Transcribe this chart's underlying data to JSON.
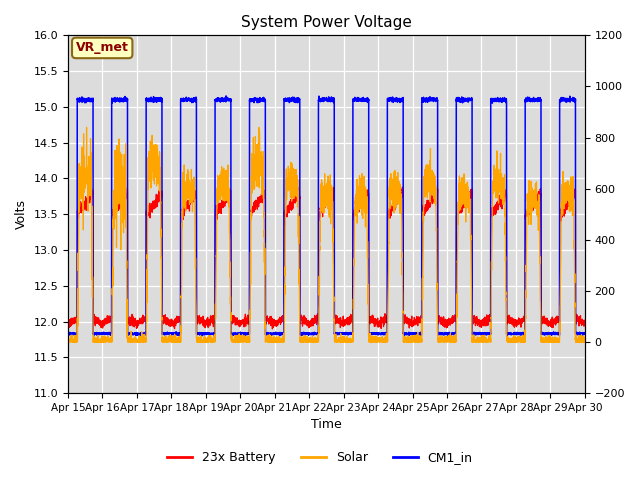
{
  "title": "System Power Voltage",
  "ylabel_left": "Volts",
  "xlabel": "Time",
  "ylim_left": [
    11.0,
    16.0
  ],
  "ylim_right": [
    -200,
    1200
  ],
  "annotation_text": "VR_met",
  "annotation_color": "#8B0000",
  "annotation_bg": "#FFFFC0",
  "annotation_edge": "#8B6914",
  "x_tick_labels": [
    "Apr 15",
    "Apr 16",
    "Apr 17",
    "Apr 18",
    "Apr 19",
    "Apr 20",
    "Apr 21",
    "Apr 22",
    "Apr 23",
    "Apr 24",
    "Apr 25",
    "Apr 26",
    "Apr 27",
    "Apr 28",
    "Apr 29",
    "Apr 30"
  ],
  "legend_labels": [
    "23x Battery",
    "Solar",
    "CM1_in"
  ],
  "bg_color": "#DCDCDC",
  "fig_bg": "#FFFFFF",
  "left_yticks": [
    11.0,
    11.5,
    12.0,
    12.5,
    13.0,
    13.5,
    14.0,
    14.5,
    15.0,
    15.5,
    16.0
  ],
  "right_yticks": [
    -200,
    0,
    200,
    400,
    600,
    800,
    1000,
    1200
  ]
}
